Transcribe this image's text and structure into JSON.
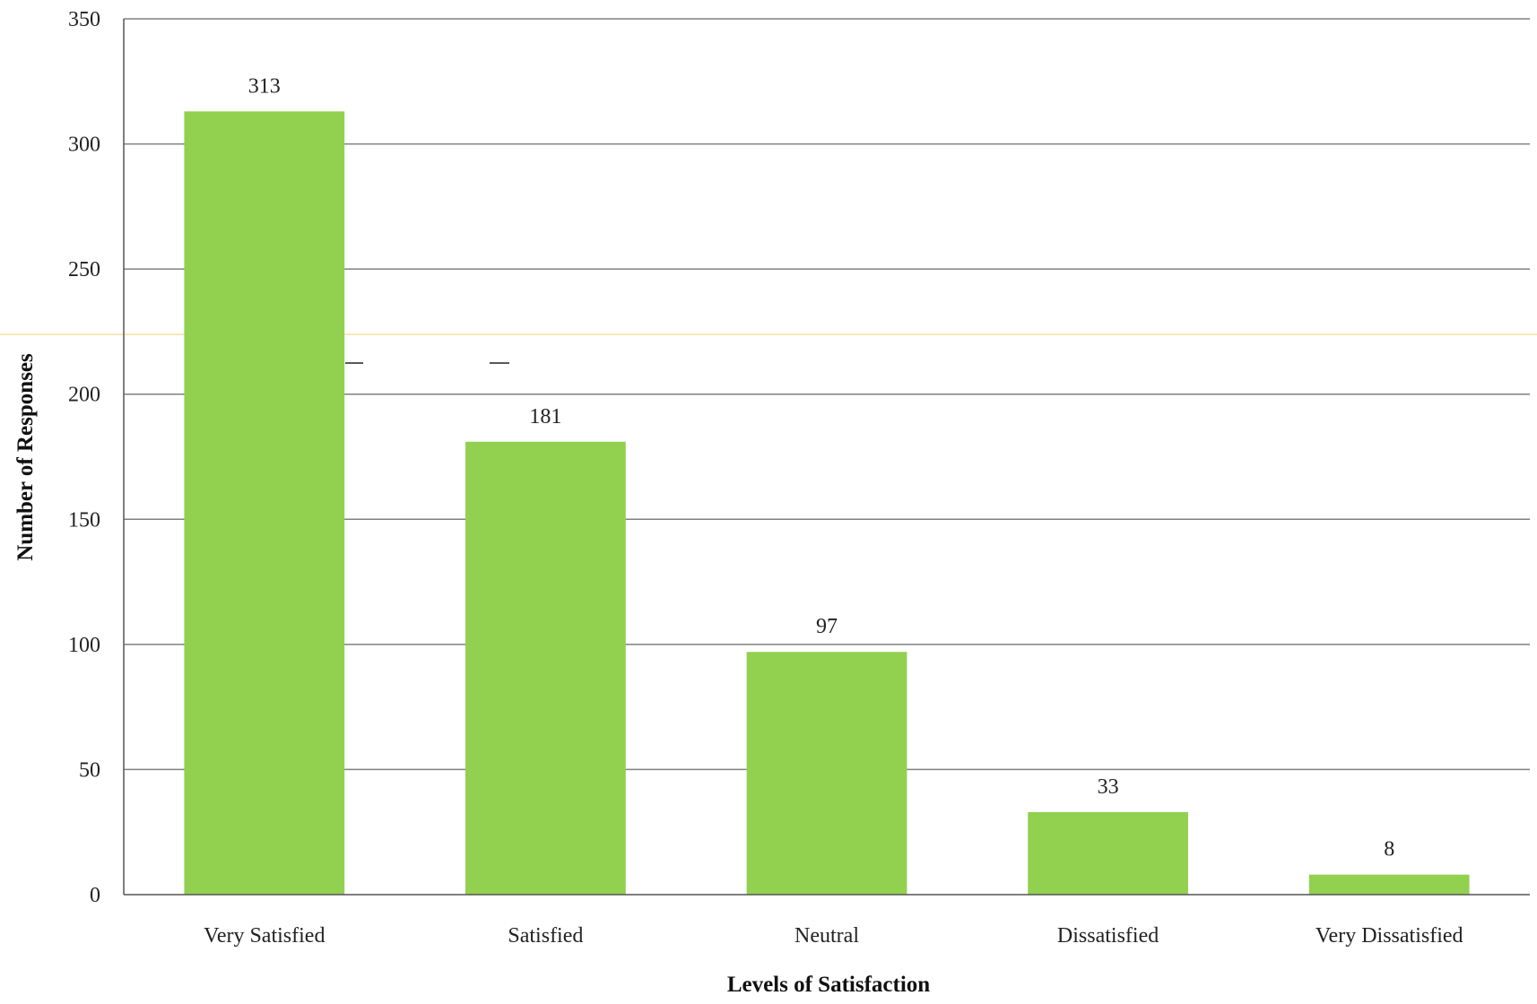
{
  "chart_data": {
    "type": "bar",
    "title": "",
    "xlabel": "Levels of Satisfaction",
    "ylabel": "Number of Responses",
    "categories": [
      "Very Satisfied",
      "Satisfied",
      "Neutral",
      "Dissatisfied",
      "Very Dissatisfied"
    ],
    "values": [
      313,
      181,
      97,
      33,
      8
    ],
    "data_labels": [
      "313",
      "181",
      "97",
      "33",
      "8"
    ],
    "ylim": [
      0,
      350
    ],
    "yticks": [
      0,
      50,
      100,
      150,
      200,
      250,
      300,
      350
    ],
    "ytick_labels": [
      "0",
      "50",
      "100",
      "150",
      "200",
      "250",
      "300",
      "350"
    ],
    "grid": true,
    "legend": "none",
    "colors": {
      "bar": "#92D050",
      "grid": "#808080",
      "axis": "#555555",
      "highlight_line": "#F5DFA0"
    }
  }
}
